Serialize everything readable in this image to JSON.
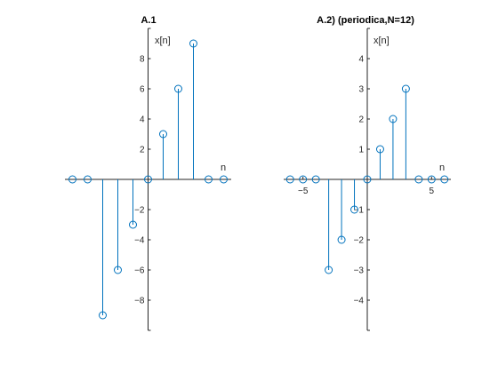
{
  "figure": {
    "background": "#ffffff"
  },
  "chart_data": [
    {
      "type": "stem",
      "title": "A.1",
      "xlabel": "n",
      "ylabel": "x[n]",
      "xlim": [
        -5.5,
        5.5
      ],
      "ylim": [
        -10,
        10
      ],
      "yticks": [
        -8,
        -6,
        -4,
        -2,
        2,
        4,
        6,
        8
      ],
      "xticks": [],
      "grid": false,
      "color": "#0072BD",
      "series": [
        {
          "x": [
            -5,
            -4,
            -3,
            -2,
            -1,
            0,
            1,
            2,
            3,
            4,
            5
          ],
          "values": [
            0,
            0,
            -9,
            -6,
            -3,
            0,
            3,
            6,
            9,
            0,
            0
          ]
        }
      ]
    },
    {
      "type": "stem",
      "title": "A.2) (periodica,N=12)",
      "xlabel": "n",
      "ylabel": "x[n]",
      "xlim": [
        -6.5,
        6.5
      ],
      "ylim": [
        -5,
        5
      ],
      "yticks": [
        -4,
        -3,
        -2,
        -1,
        1,
        2,
        3,
        4
      ],
      "xticks": [
        -5,
        5
      ],
      "grid": false,
      "color": "#0072BD",
      "series": [
        {
          "x": [
            -6,
            -5,
            -4,
            -3,
            -2,
            -1,
            0,
            1,
            2,
            3,
            4,
            5,
            6
          ],
          "values": [
            0,
            0,
            0,
            -3,
            -2,
            -1,
            0,
            1,
            2,
            3,
            0,
            0,
            0
          ]
        }
      ]
    }
  ]
}
